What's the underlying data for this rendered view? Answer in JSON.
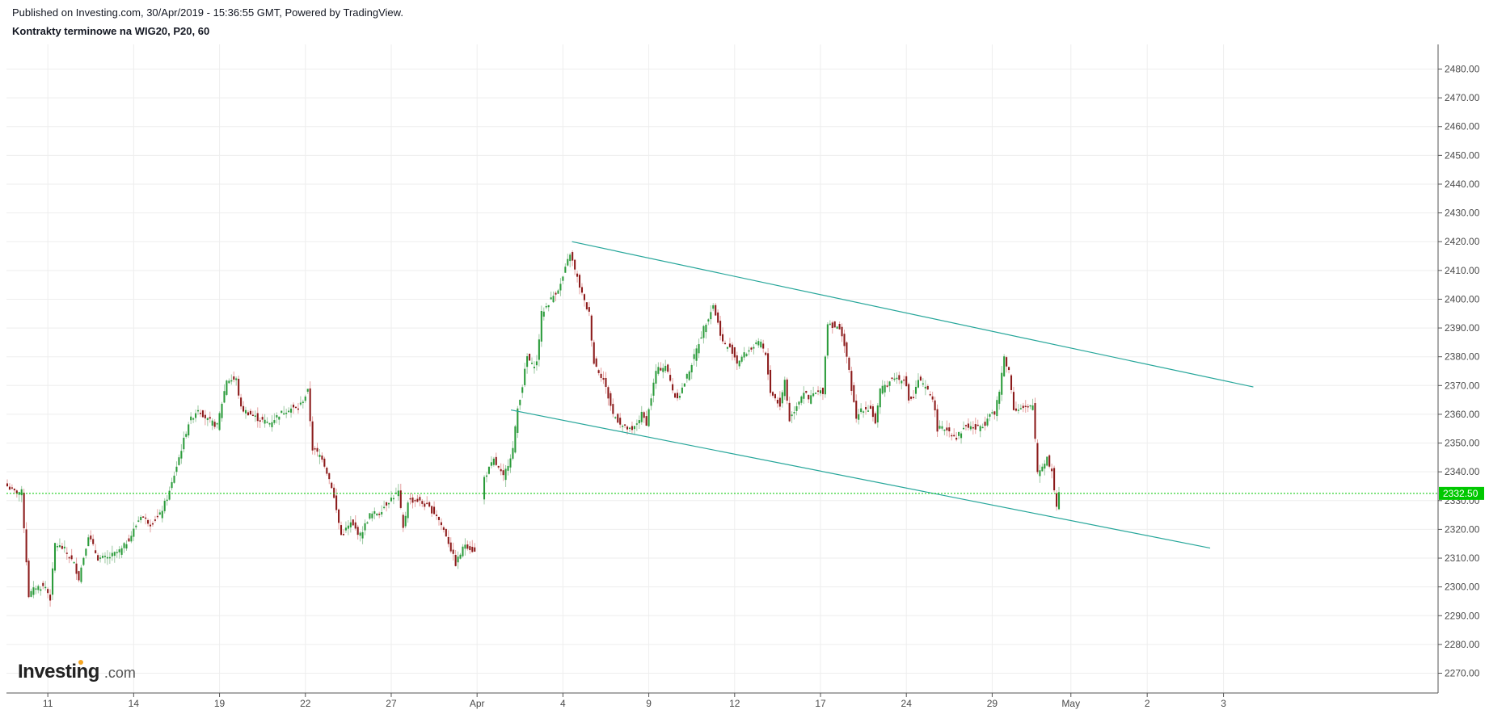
{
  "header": {
    "published": "Published on Investing.com, 30/Apr/2019 - 15:36:55 GMT, Powered by TradingView.",
    "title": "Kontrakty terminowe na WIG20, P20, 60"
  },
  "logo": {
    "main": "Investing",
    "suffix": ".com"
  },
  "colors": {
    "up": "#2a9b3a",
    "down": "#8b1a1a",
    "trendline": "#26a69a",
    "last_price": "#00c800",
    "grid": "#eeeeee",
    "axis": "#555555"
  },
  "chart_data": {
    "type": "candlestick",
    "title": "Kontrakty terminowe na WIG20, P20, 60",
    "ylim": [
      2263,
      2485
    ],
    "y_ticks": [
      "2480.00",
      "2470.00",
      "2460.00",
      "2450.00",
      "2440.00",
      "2430.00",
      "2420.00",
      "2410.00",
      "2400.00",
      "2390.00",
      "2380.00",
      "2370.00",
      "2360.00",
      "2350.00",
      "2340.00",
      "2330.00",
      "2320.00",
      "2310.00",
      "2300.00",
      "2290.00",
      "2280.00",
      "2270.00"
    ],
    "x_ticks": [
      {
        "label": "11",
        "idx": 17
      },
      {
        "label": "14",
        "idx": 53
      },
      {
        "label": "19",
        "idx": 89
      },
      {
        "label": "22",
        "idx": 125
      },
      {
        "label": "27",
        "idx": 161
      },
      {
        "label": "Apr",
        "idx": 197
      },
      {
        "label": "4",
        "idx": 233
      },
      {
        "label": "9",
        "idx": 269
      },
      {
        "label": "12",
        "idx": 305
      },
      {
        "label": "17",
        "idx": 341
      },
      {
        "label": "24",
        "idx": 377
      },
      {
        "label": "29",
        "idx": 413
      },
      {
        "label": "May",
        "idx": 446
      },
      {
        "label": "2",
        "idx": 478
      },
      {
        "label": "3",
        "idx": 510
      }
    ],
    "last_price": {
      "value": 2332.5,
      "label": "2332.50"
    },
    "trendlines": [
      {
        "from": {
          "idx": 236.8,
          "price": 2420
        },
        "to": {
          "idx": 522.5,
          "price": 2369.5
        }
      },
      {
        "from": {
          "idx": 211.2,
          "price": 2361.5
        },
        "to": {
          "idx": 504.4,
          "price": 2313.5
        }
      }
    ],
    "anchors": [
      [
        0,
        2335
      ],
      [
        3,
        2333
      ],
      [
        6,
        2333
      ],
      [
        9,
        2297
      ],
      [
        12,
        2300
      ],
      [
        16,
        2300
      ],
      [
        18,
        2296
      ],
      [
        20,
        2315
      ],
      [
        24,
        2313
      ],
      [
        28,
        2308
      ],
      [
        30,
        2303
      ],
      [
        34,
        2318
      ],
      [
        38,
        2310
      ],
      [
        42,
        2310
      ],
      [
        48,
        2313
      ],
      [
        52,
        2318
      ],
      [
        56,
        2325
      ],
      [
        60,
        2322
      ],
      [
        64,
        2325
      ],
      [
        68,
        2333
      ],
      [
        72,
        2345
      ],
      [
        76,
        2357
      ],
      [
        80,
        2362
      ],
      [
        84,
        2358
      ],
      [
        88,
        2356
      ],
      [
        92,
        2372
      ],
      [
        96,
        2372
      ],
      [
        98,
        2362
      ],
      [
        102,
        2360
      ],
      [
        106,
        2358
      ],
      [
        110,
        2357
      ],
      [
        114,
        2360
      ],
      [
        118,
        2362
      ],
      [
        122,
        2362
      ],
      [
        126,
        2368
      ],
      [
        128,
        2348
      ],
      [
        132,
        2345
      ],
      [
        136,
        2335
      ],
      [
        140,
        2318
      ],
      [
        144,
        2322
      ],
      [
        148,
        2318
      ],
      [
        152,
        2325
      ],
      [
        156,
        2326
      ],
      [
        160,
        2330
      ],
      [
        164,
        2333
      ],
      [
        166,
        2320
      ],
      [
        168,
        2330
      ],
      [
        172,
        2330
      ],
      [
        176,
        2328
      ],
      [
        180,
        2325
      ],
      [
        184,
        2318
      ],
      [
        188,
        2308
      ],
      [
        192,
        2315
      ],
      [
        196,
        2312
      ],
      [
        200,
        2338
      ],
      [
        204,
        2344
      ],
      [
        208,
        2338
      ],
      [
        212,
        2348
      ],
      [
        214,
        2362
      ],
      [
        216,
        2370
      ],
      [
        218,
        2380
      ],
      [
        220,
        2377
      ],
      [
        222,
        2378
      ],
      [
        224,
        2395
      ],
      [
        228,
        2400
      ],
      [
        232,
        2405
      ],
      [
        236,
        2416
      ],
      [
        238,
        2410
      ],
      [
        242,
        2399
      ],
      [
        244,
        2395
      ],
      [
        246,
        2378
      ],
      [
        250,
        2372
      ],
      [
        254,
        2360
      ],
      [
        258,
        2356
      ],
      [
        262,
        2354
      ],
      [
        266,
        2360
      ],
      [
        268,
        2357
      ],
      [
        272,
        2375
      ],
      [
        276,
        2377
      ],
      [
        280,
        2366
      ],
      [
        282,
        2367
      ],
      [
        284,
        2371
      ],
      [
        288,
        2380
      ],
      [
        292,
        2390
      ],
      [
        296,
        2398
      ],
      [
        300,
        2385
      ],
      [
        304,
        2382
      ],
      [
        306,
        2378
      ],
      [
        308,
        2380
      ],
      [
        312,
        2383
      ],
      [
        316,
        2385
      ],
      [
        318,
        2380
      ],
      [
        320,
        2368
      ],
      [
        324,
        2363
      ],
      [
        326,
        2372
      ],
      [
        328,
        2358
      ],
      [
        332,
        2365
      ],
      [
        334,
        2368
      ],
      [
        336,
        2365
      ],
      [
        338,
        2367
      ],
      [
        342,
        2368
      ],
      [
        344,
        2392
      ],
      [
        348,
        2390
      ],
      [
        350,
        2388
      ],
      [
        352,
        2380
      ],
      [
        356,
        2358
      ],
      [
        358,
        2362
      ],
      [
        362,
        2362
      ],
      [
        364,
        2357
      ],
      [
        366,
        2368
      ],
      [
        368,
        2370
      ],
      [
        372,
        2373
      ],
      [
        374,
        2372
      ],
      [
        376,
        2373
      ],
      [
        378,
        2365
      ],
      [
        380,
        2366
      ],
      [
        382,
        2372
      ],
      [
        386,
        2368
      ],
      [
        388,
        2366
      ],
      [
        390,
        2355
      ],
      [
        394,
        2355
      ],
      [
        398,
        2352
      ],
      [
        402,
        2356
      ],
      [
        406,
        2355
      ],
      [
        410,
        2357
      ],
      [
        412,
        2361
      ],
      [
        414,
        2360
      ],
      [
        416,
        2368
      ],
      [
        418,
        2380
      ],
      [
        420,
        2375
      ],
      [
        422,
        2362
      ],
      [
        426,
        2362
      ],
      [
        428,
        2362
      ],
      [
        430,
        2363
      ],
      [
        432,
        2340
      ],
      [
        434,
        2342
      ],
      [
        436,
        2345
      ],
      [
        438,
        2340
      ],
      [
        440,
        2328
      ],
      [
        441,
        2333
      ]
    ]
  }
}
